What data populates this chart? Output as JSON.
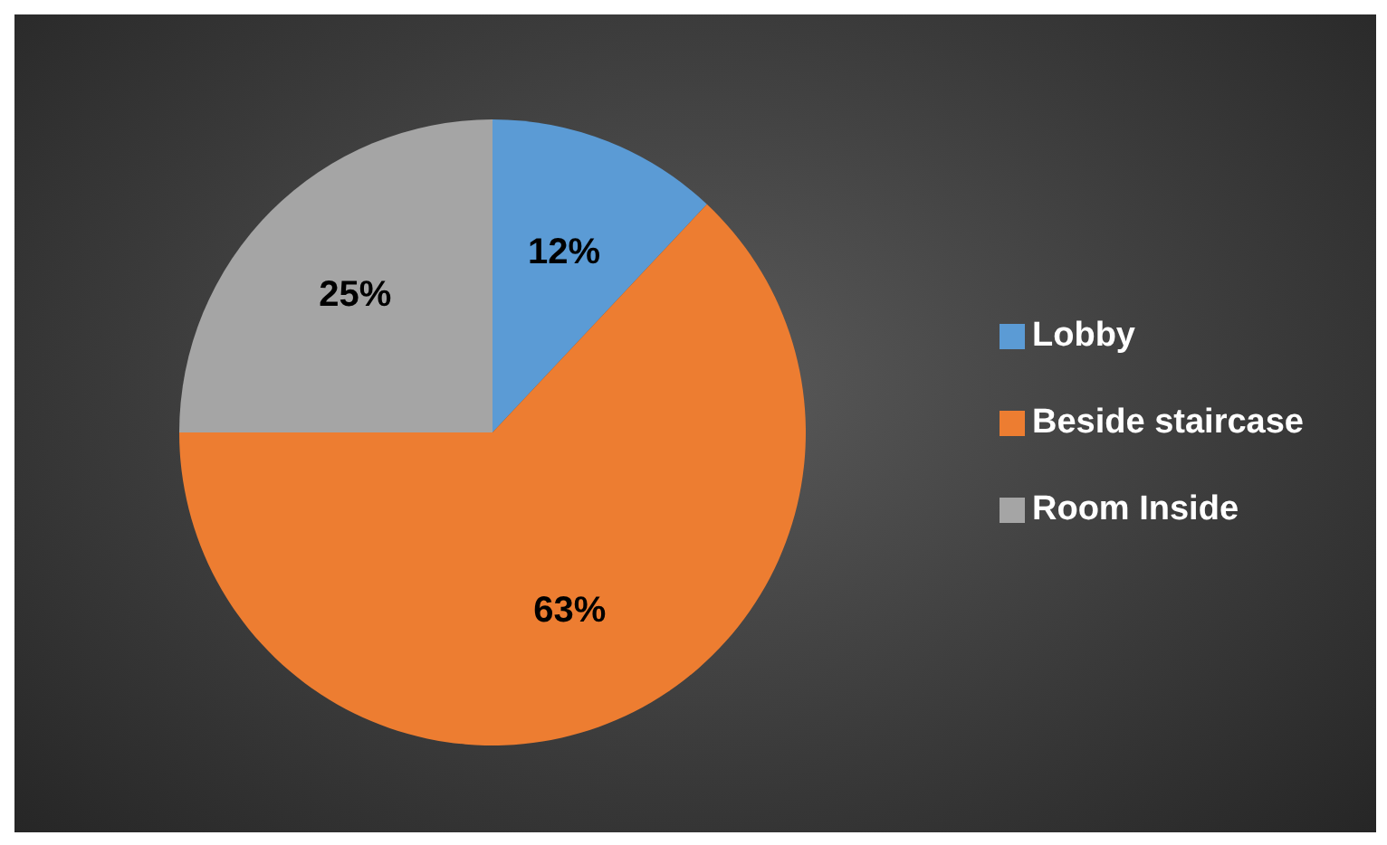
{
  "chart_data": {
    "type": "pie",
    "categories": [
      "Lobby",
      "Beside staircase",
      "Room Inside"
    ],
    "values": [
      12,
      63,
      25
    ],
    "colors": [
      "#5b9bd5",
      "#ed7d31",
      "#a5a5a5"
    ],
    "value_labels": [
      "12%",
      "63%",
      "25%"
    ],
    "legend": "right"
  }
}
